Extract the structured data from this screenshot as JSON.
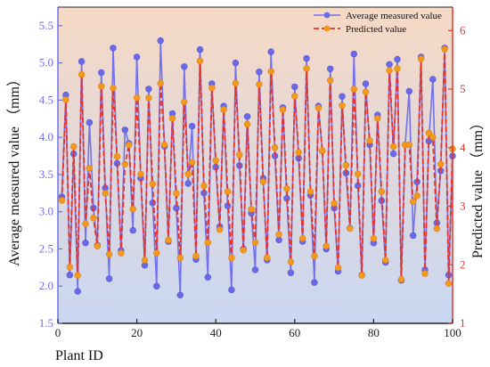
{
  "chart_data": {
    "type": "line",
    "xlabel": "Plant ID",
    "ylabel_left": "Average measured value （mm）",
    "ylabel_right": "Predicted value （mm）",
    "xlim": [
      0,
      100
    ],
    "ylim_left": [
      1.5,
      5.75
    ],
    "ylim_right": [
      1.0,
      6.4
    ],
    "x_ticks": [
      "0",
      "20",
      "40",
      "60",
      "80",
      "100"
    ],
    "y_left_ticks": [
      "1.5",
      "2.0",
      "2.5",
      "3.0",
      "3.5",
      "4.0",
      "4.5",
      "5.0",
      "5.5"
    ],
    "y_right_ticks": [
      "1",
      "2",
      "3",
      "4",
      "5",
      "6"
    ],
    "legend_position": "top-right",
    "background_gradient": {
      "top": "#f7d9c4",
      "bottom": "#c9d7f2"
    },
    "series": [
      {
        "name": "Average measured value",
        "axis": "left",
        "color": "#7272ee",
        "marker_color": "#6a6ae8",
        "x": [
          1,
          2,
          3,
          4,
          5,
          6,
          7,
          8,
          9,
          10,
          11,
          12,
          13,
          14,
          15,
          16,
          17,
          18,
          19,
          20,
          21,
          22,
          23,
          24,
          25,
          26,
          27,
          28,
          29,
          30,
          31,
          32,
          33,
          34,
          35,
          36,
          37,
          38,
          39,
          40,
          41,
          42,
          43,
          44,
          45,
          46,
          47,
          48,
          49,
          50,
          51,
          52,
          53,
          54,
          55,
          56,
          57,
          58,
          59,
          60,
          61,
          62,
          63,
          64,
          65,
          66,
          67,
          68,
          69,
          70,
          71,
          72,
          73,
          74,
          75,
          76,
          77,
          78,
          79,
          80,
          81,
          82,
          83,
          84,
          85,
          86,
          87,
          88,
          89,
          90,
          91,
          92,
          93,
          94,
          95,
          96,
          97,
          98,
          99,
          100
        ],
        "values": [
          3.2,
          4.57,
          2.15,
          3.78,
          1.93,
          5.02,
          2.58,
          4.2,
          3.05,
          2.55,
          4.87,
          3.32,
          2.1,
          5.2,
          3.65,
          2.48,
          4.1,
          3.92,
          2.75,
          5.08,
          3.45,
          2.28,
          4.65,
          3.12,
          2.0,
          5.3,
          3.88,
          2.6,
          4.32,
          3.05,
          1.88,
          4.95,
          3.38,
          4.15,
          2.36,
          5.18,
          3.25,
          2.12,
          4.72,
          3.6,
          2.8,
          4.42,
          3.08,
          1.95,
          5.0,
          3.62,
          2.5,
          4.28,
          2.98,
          2.22,
          4.88,
          3.45,
          2.35,
          5.15,
          3.75,
          2.62,
          4.4,
          3.18,
          2.18,
          4.68,
          3.72,
          2.6,
          5.06,
          3.22,
          2.05,
          4.42,
          3.82,
          2.5,
          4.92,
          3.05,
          2.2,
          4.55,
          3.52,
          2.78,
          5.12,
          3.35,
          2.15,
          4.72,
          3.9,
          2.58,
          4.3,
          3.15,
          2.32,
          4.98,
          3.78,
          5.05,
          2.08,
          3.9,
          4.62,
          2.68,
          3.4,
          5.08,
          2.22,
          3.95,
          4.78,
          2.85,
          3.55,
          5.2,
          2.15,
          3.75
        ]
      },
      {
        "name": "Predicted value",
        "axis": "right",
        "color": "#e8332b",
        "marker_color": "#f39a1e",
        "x": [
          1,
          2,
          3,
          4,
          5,
          6,
          7,
          8,
          9,
          10,
          11,
          12,
          13,
          14,
          15,
          16,
          17,
          18,
          19,
          20,
          21,
          22,
          23,
          24,
          25,
          26,
          27,
          28,
          29,
          30,
          31,
          32,
          33,
          34,
          35,
          36,
          37,
          38,
          39,
          40,
          41,
          42,
          43,
          44,
          45,
          46,
          47,
          48,
          49,
          50,
          51,
          52,
          53,
          54,
          55,
          56,
          57,
          58,
          59,
          60,
          61,
          62,
          63,
          64,
          65,
          66,
          67,
          68,
          69,
          70,
          71,
          72,
          73,
          74,
          75,
          76,
          77,
          78,
          79,
          80,
          81,
          82,
          83,
          84,
          85,
          86,
          87,
          88,
          89,
          90,
          91,
          92,
          93,
          94,
          95,
          96,
          97,
          98,
          99,
          100
        ],
        "values": [
          3.1,
          4.82,
          1.96,
          4.02,
          1.82,
          5.25,
          2.7,
          3.65,
          2.8,
          2.32,
          5.05,
          3.22,
          2.18,
          5.02,
          3.85,
          2.2,
          3.72,
          4.05,
          2.95,
          4.85,
          3.55,
          2.08,
          4.85,
          3.38,
          2.2,
          5.1,
          4.05,
          2.42,
          4.5,
          3.22,
          2.12,
          4.78,
          3.55,
          3.75,
          2.15,
          5.48,
          3.35,
          2.38,
          5.02,
          3.78,
          2.6,
          4.65,
          3.25,
          2.12,
          5.1,
          3.88,
          2.25,
          4.4,
          2.95,
          2.38,
          5.08,
          3.42,
          2.12,
          5.3,
          4.0,
          2.52,
          4.65,
          3.3,
          2.05,
          4.88,
          3.92,
          2.45,
          5.35,
          3.25,
          2.15,
          4.68,
          3.95,
          2.32,
          5.15,
          3.05,
          1.95,
          4.72,
          3.7,
          2.62,
          5.0,
          3.55,
          1.82,
          4.95,
          4.12,
          2.45,
          4.5,
          3.25,
          2.08,
          5.32,
          4.02,
          5.35,
          1.75,
          4.05,
          4.05,
          3.08,
          3.18,
          5.52,
          1.85,
          4.25,
          4.18,
          2.62,
          3.72,
          5.68,
          1.68,
          3.98
        ]
      }
    ]
  }
}
